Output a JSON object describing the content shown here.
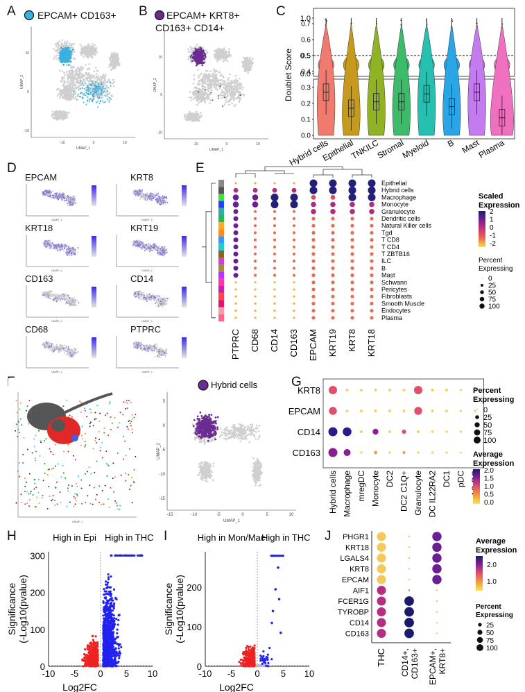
{
  "panels": {
    "A": "A",
    "B": "B",
    "C": "C",
    "D": "D",
    "E": "E",
    "F": "F",
    "G": "G",
    "H": "H",
    "I": "I",
    "J": "J"
  },
  "panel_a": {
    "title": "EPCAM+ CD163+",
    "dot_color": "#3ab0e0",
    "xlabel": "UMAP_1",
    "ylabel": "UMAP_2",
    "xticks": [
      "-10",
      "0",
      "10"
    ],
    "yticks": [
      "10",
      "0",
      "-10"
    ]
  },
  "panel_b": {
    "title_line1": "EPCAM+ KRT8+",
    "title_line2": "CD163+ CD14+",
    "dot_color": "#6a2c91",
    "xlabel": "UMAP_1",
    "ylabel": "UMAP_2",
    "xticks": [
      "-10",
      "0",
      "10"
    ],
    "yticks": [
      "10",
      "0",
      "-10"
    ]
  },
  "chart_data": [
    {
      "type": "violin",
      "panel": "C",
      "ylabel": "Doublet Score",
      "categories": [
        "Hybrid cells",
        "Epithelial",
        "TNKILC",
        "Stromal",
        "Myeloid",
        "B",
        "Mast",
        "Plasma"
      ],
      "colors": [
        "#f07a6e",
        "#c89a1c",
        "#8fb322",
        "#3dbb6a",
        "#26c0b0",
        "#2aa6e6",
        "#c57bf0",
        "#f070c0"
      ],
      "top_panel": {
        "yticks": [
          "1.0",
          "0.5",
          "0.0"
        ],
        "threshold": 0.5
      },
      "bottom_panel": {
        "yticks": [
          "0.7",
          "0.6",
          "0.5",
          "0.4",
          "0.3",
          "0.2",
          "0.1",
          "0.0"
        ]
      },
      "medians": [
        0.27,
        0.17,
        0.21,
        0.21,
        0.26,
        0.18,
        0.27,
        0.11
      ]
    },
    {
      "type": "dotplot",
      "panel": "E",
      "genes": [
        "PTPRC",
        "CD68",
        "CD14",
        "CD163",
        "EPCAM",
        "KRT19",
        "KRT8",
        "KRT18"
      ],
      "celltypes": [
        "Epithelial",
        "Hybrid cells",
        "Macrophage",
        "Monocyte",
        "Granulocyte",
        "Dendritic cells",
        "Natural Killer cells",
        "Tgd",
        "T CD8",
        "T CD4",
        "T ZBTB16",
        "ILC",
        "B",
        "Mast",
        "Schwann",
        "Pericytes",
        "Fibroblasts",
        "Smooth Muscle",
        "Endocytes",
        "Plasma"
      ],
      "celltype_colors": [
        "#888888",
        "#555555",
        "#44dd44",
        "#2244ff",
        "#33aaaa",
        "#22bb55",
        "#ffaa22",
        "#ff8822",
        "#3399ff",
        "#22cccc",
        "#886622",
        "#cc44cc",
        "#aa8844",
        "#bb33ff",
        "#ff33aa",
        "#cc22aa",
        "#ff4444",
        "#dd1177",
        "#ff99aa",
        "#ff6688"
      ],
      "legend": {
        "scaled_title": "Scaled Expression",
        "scaled_ticks": [
          "2",
          "1",
          "0",
          "-1",
          "-2"
        ],
        "percent_title_line1": "Percent",
        "percent_title_line2": "Expressing",
        "percent_ticks": [
          "0",
          "25",
          "50",
          "75",
          "100"
        ]
      }
    },
    {
      "type": "dotplot",
      "panel": "G",
      "genes": [
        "KRT8",
        "EPCAM",
        "CD14",
        "CD163"
      ],
      "celltypes": [
        "Hybrid cells",
        "Macrophage",
        "mregDC",
        "Monocyte",
        "DC2",
        "DC2 C1Q+",
        "Granulocyte",
        "DC IL22RA2",
        "DC1",
        "pDC",
        "AS-DC"
      ],
      "legend": {
        "percent_title_line1": "Percent",
        "percent_title_line2": "Expressing",
        "percent_ticks": [
          "0",
          "25",
          "50",
          "75",
          "100"
        ],
        "avg_title_line1": "Average",
        "avg_title_line2": "Expression",
        "avg_ticks": [
          "2.0",
          "1.5",
          "1.0",
          "0.5",
          "0.0"
        ]
      }
    },
    {
      "type": "scatter",
      "panel": "H",
      "title_left": "High in Epi",
      "title_right": "High in THC",
      "xlabel": "Log2FC",
      "ylabel_line1": "Significance",
      "ylabel_line2": "(-Log10(pvalue)",
      "xticks": [
        "-10",
        "-5",
        "0",
        "5",
        "10"
      ],
      "yticks": [
        "0",
        "100",
        "200",
        "300"
      ],
      "xlim": [
        -10,
        10
      ],
      "ylim": [
        0,
        310
      ]
    },
    {
      "type": "scatter",
      "panel": "I",
      "title_left": "High in Mon/Mac",
      "title_right": "High in THC",
      "xlabel": "Log2FC",
      "ylabel_line1": "Significance",
      "ylabel_line2": "(-Log10(pvalue)",
      "xticks": [
        "-10",
        "-5",
        "0",
        "5",
        "10"
      ],
      "yticks": [
        "0",
        "100",
        "200"
      ],
      "xlim": [
        -10,
        10
      ],
      "ylim": [
        0,
        290
      ]
    },
    {
      "type": "dotplot",
      "panel": "J",
      "genes": [
        "PHGR1",
        "KRT18",
        "LGALS4",
        "KRT8",
        "EPCAM",
        "AIF1",
        "FCER1G",
        "TYROBP",
        "CD14",
        "CD163"
      ],
      "groups": [
        "THC",
        "CD14+, CD163+",
        "EPCAM+, KRT8+"
      ],
      "legend": {
        "avg_title_line1": "Average",
        "avg_title_line2": "Expression",
        "avg_ticks": [
          "2.0",
          "1.0"
        ],
        "percent_title_line1": "Percent",
        "percent_title_line2": "Expressing",
        "percent_ticks": [
          "25",
          "50",
          "75",
          "100"
        ]
      }
    }
  ],
  "panel_d": {
    "genes": [
      "EPCAM",
      "KRT8",
      "KRT18",
      "KRT19",
      "CD163",
      "CD14",
      "CD68",
      "PTPRC"
    ],
    "xlabel": "UMAP_1",
    "ylabel": "UMAP_2"
  },
  "panel_f": {
    "legend_title": "Hybrid cells",
    "xlabel_left": "UMAP_1",
    "xlabel_right": "UMAP_1",
    "ylabel": "UMAP_2",
    "xticks": [
      "-15",
      "-10",
      "-5",
      "0",
      "5",
      "10"
    ],
    "yticks": [
      "5",
      "0",
      "-5",
      "-10",
      "-15"
    ]
  }
}
